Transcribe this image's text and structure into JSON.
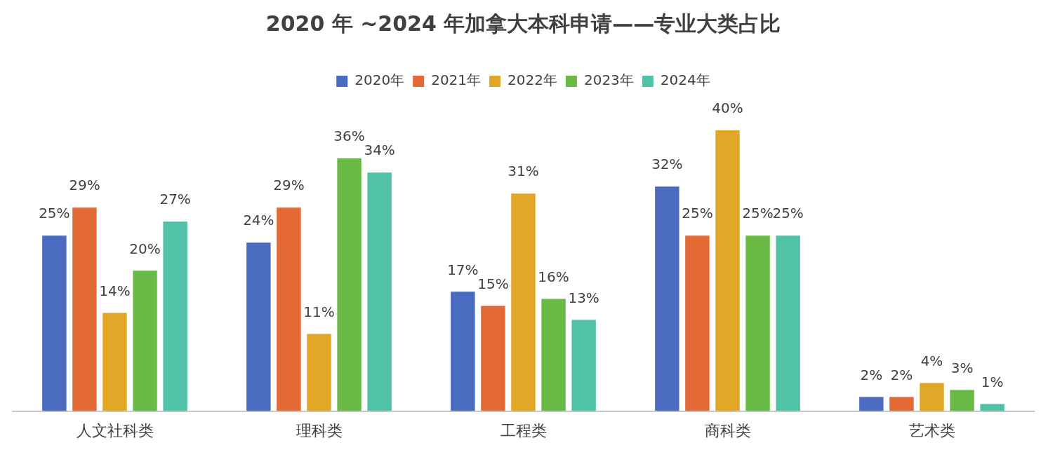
{
  "chart_data": {
    "type": "bar",
    "title": "2020 年 ~2024 年加拿大本科申请——专业大类占比",
    "categories": [
      "人文社科类",
      "理科类",
      "工程类",
      "商科类",
      "艺术类"
    ],
    "legend": "top",
    "grid": false,
    "series": [
      {
        "name": "2020年",
        "color": "#4a6bbf",
        "values": [
          25,
          24,
          17,
          32,
          2
        ],
        "value_labels": [
          "25%",
          "24%",
          "17%",
          "32%",
          "2%"
        ]
      },
      {
        "name": "2021年",
        "color": "#e36a35",
        "values": [
          29,
          29,
          15,
          25,
          2
        ],
        "value_labels": [
          "29%",
          "29%",
          "15%",
          "25%",
          "2%"
        ]
      },
      {
        "name": "2022年",
        "color": "#e2a727",
        "values": [
          14,
          11,
          31,
          40,
          4
        ],
        "value_labels": [
          "14%",
          "11%",
          "31%",
          "40%",
          "4%"
        ]
      },
      {
        "name": "2023年",
        "color": "#6abb45",
        "values": [
          20,
          36,
          16,
          25,
          3
        ],
        "value_labels": [
          "20%",
          "36%",
          "16%",
          "25%",
          "3%"
        ]
      },
      {
        "name": "2024年",
        "color": "#4fc2a8",
        "values": [
          27,
          34,
          13,
          25,
          1
        ],
        "value_labels": [
          "27%",
          "34%",
          "13%",
          "25%",
          "1%"
        ]
      }
    ]
  }
}
